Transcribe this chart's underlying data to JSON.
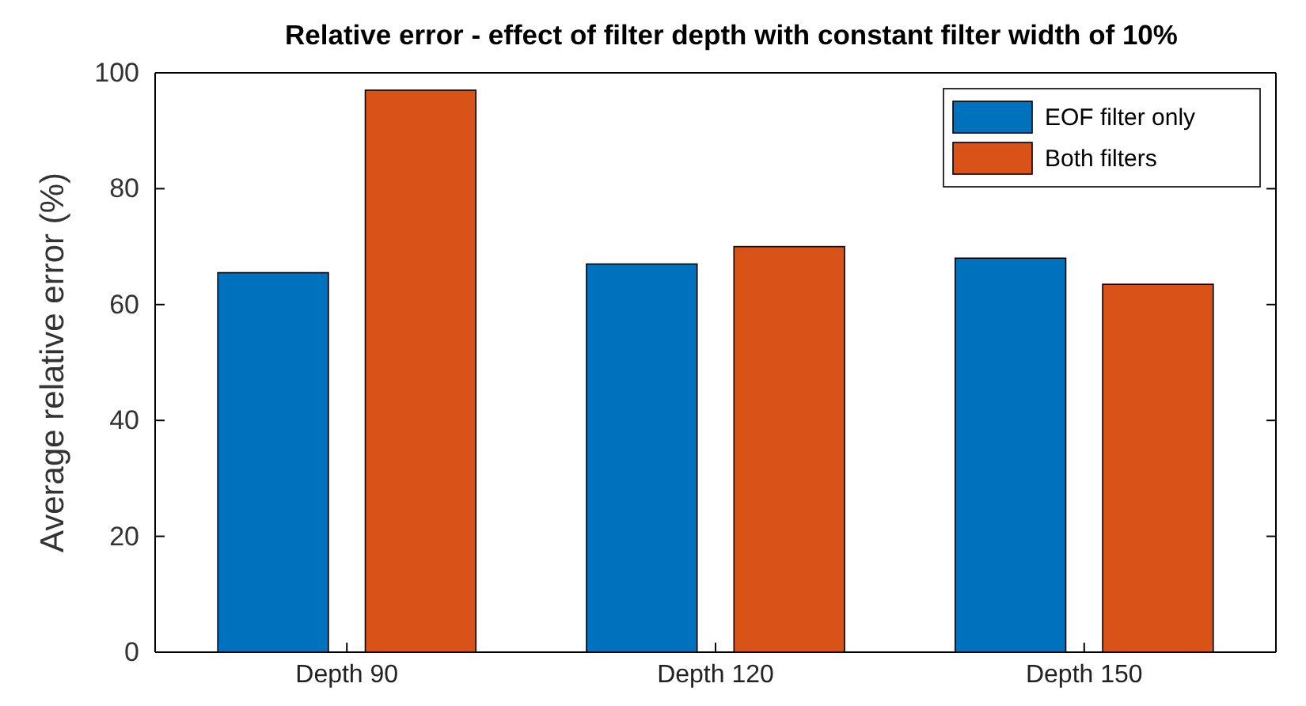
{
  "chart_data": {
    "type": "bar",
    "title": "Relative error - effect of filter depth with constant filter width of 10%",
    "ylabel": "Average relative error (%)",
    "categories": [
      "Depth 90",
      "Depth 120",
      "Depth 150"
    ],
    "series": [
      {
        "name": "EOF filter only",
        "color": "#0072bd",
        "values": [
          65.5,
          67,
          68
        ]
      },
      {
        "name": "Both filters",
        "color": "#d95319",
        "values": [
          97,
          70,
          63.5
        ]
      }
    ],
    "ylim": [
      0,
      100
    ],
    "yticks": [
      0,
      20,
      40,
      60,
      80,
      100
    ],
    "grid": false,
    "legend": "top right"
  }
}
